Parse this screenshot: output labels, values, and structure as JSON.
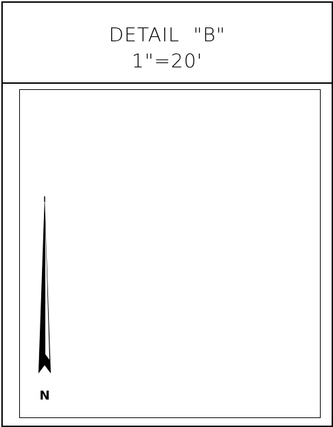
{
  "title": {
    "line1": "DETAIL  \"B\"",
    "line2": "1\"=20'"
  },
  "north_arrow": {
    "label": "N"
  }
}
